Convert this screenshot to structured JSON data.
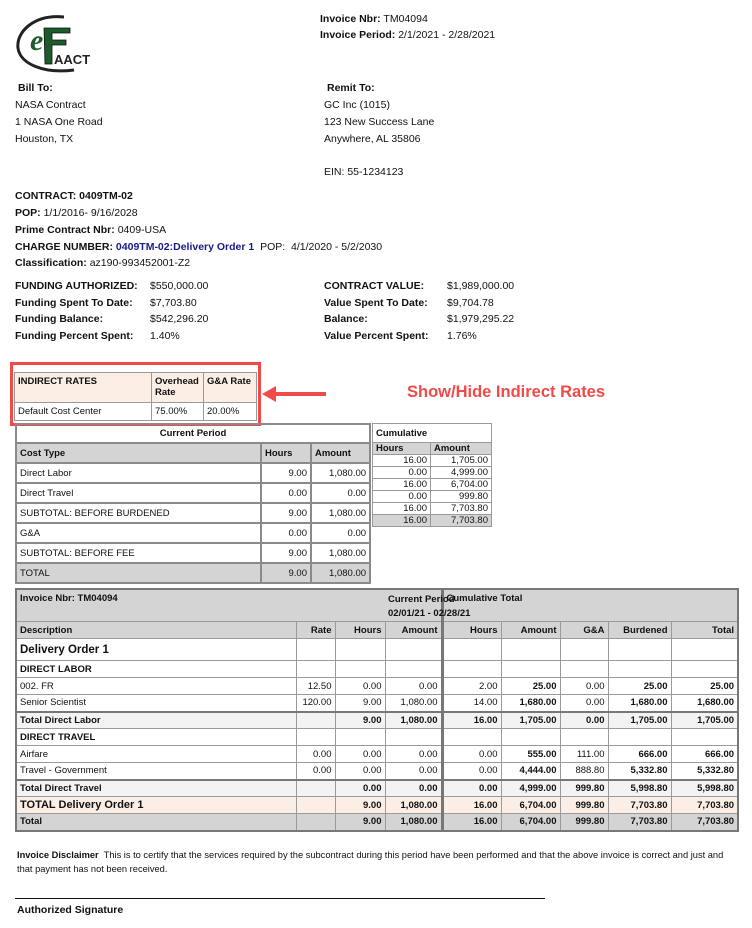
{
  "logo": {
    "text": "eFAACT",
    "color": "#1e5b2c"
  },
  "header": {
    "invoice_nbr_label": "Invoice Nbr:",
    "invoice_nbr": "TM04094",
    "invoice_period_label": "Invoice Period:",
    "invoice_period": "2/1/2021 - 2/28/2021"
  },
  "bill_to": {
    "label": "Bill To:",
    "lines": [
      "NASA Contract",
      "1 NASA One Road",
      "Houston, TX"
    ]
  },
  "remit_to": {
    "label": "Remit To:",
    "lines": [
      "GC Inc (1015)",
      "123 New Success Lane",
      "Anywhere, AL  35806"
    ],
    "ein": "EIN: 55-1234123"
  },
  "contract": {
    "contract_label": "CONTRACT:",
    "contract": "0409TM-02",
    "pop_label": "POP:",
    "pop": "1/1/2016- 9/16/2028",
    "prime_label": "Prime Contract Nbr:",
    "prime": "0409-USA",
    "charge_label": "CHARGE NUMBER:",
    "charge": "0409TM-02:Delivery Order 1",
    "charge_pop_label": "POP:",
    "charge_pop": "4/1/2020  - 5/2/2030",
    "class_label": "Classification:",
    "class": "az190-993452001-Z2"
  },
  "funding": {
    "left": [
      [
        "FUNDING AUTHORIZED:",
        "$550,000.00"
      ],
      [
        "Funding Spent To Date:",
        "$7,703.80"
      ],
      [
        "Funding Balance:",
        "$542,296.20"
      ],
      [
        "Funding Percent Spent:",
        "1.40%"
      ]
    ],
    "right": [
      [
        "CONTRACT VALUE:",
        "$1,989,000.00"
      ],
      [
        "Value Spent To Date:",
        "$9,704.78"
      ],
      [
        "Balance:",
        "$1,979,295.22"
      ],
      [
        "Value Percent Spent:",
        "1.76%"
      ]
    ]
  },
  "indirect": {
    "headers": [
      "INDIRECT RATES",
      "Overhead Rate",
      "G&A Rate"
    ],
    "row": [
      "Default Cost Center",
      "75.00%",
      "20.00%"
    ],
    "annotation": "Show/Hide Indirect Rates",
    "annotation_color": "#f04a4a"
  },
  "summary": {
    "current_label": "Current Period",
    "cumulative_label": "Cumulative",
    "headers": [
      "Cost Type",
      "Hours",
      "Amount",
      "Hours",
      "Amount"
    ],
    "rows": [
      [
        "Direct Labor",
        "9.00",
        "1,080.00",
        "16.00",
        "1,705.00"
      ],
      [
        "Direct Travel",
        "0.00",
        "0.00",
        "0.00",
        "4,999.00"
      ],
      [
        "SUBTOTAL: BEFORE BURDENED",
        "9.00",
        "1,080.00",
        "16.00",
        "6,704.00"
      ],
      [
        "G&A",
        "0.00",
        "0.00",
        "0.00",
        "999.80"
      ],
      [
        "SUBTOTAL: BEFORE FEE",
        "9.00",
        "1,080.00",
        "16.00",
        "7,703.80"
      ],
      [
        "TOTAL",
        "9.00",
        "1,080.00",
        "16.00",
        "7,703.80"
      ]
    ]
  },
  "detail": {
    "invoice_label": "Invoice Nbr:  TM04094",
    "current_label": "Current Period",
    "current_dates": "02/01/21 - 02/28/21",
    "cumulative_label": "Cumulative Total",
    "headers": [
      "Description",
      "Rate",
      "Hours",
      "Amount",
      "Hours",
      "Amount",
      "G&A",
      "Burdened",
      "Total"
    ],
    "rows": [
      {
        "type": "order",
        "cells": [
          "Delivery Order 1",
          "",
          "",
          "",
          "",
          "",
          "",
          "",
          ""
        ]
      },
      {
        "type": "section",
        "cells": [
          "DIRECT LABOR",
          "",
          "",
          "",
          "",
          "",
          "",
          "",
          ""
        ]
      },
      {
        "type": "item",
        "cells": [
          "002. FR",
          "12.50",
          "0.00",
          "0.00",
          "2.00",
          "25.00",
          "0.00",
          "25.00",
          "25.00"
        ]
      },
      {
        "type": "item",
        "cells": [
          "Senior Scientist",
          "120.00",
          "9.00",
          "1,080.00",
          "14.00",
          "1,680.00",
          "0.00",
          "1,680.00",
          "1,680.00"
        ]
      },
      {
        "type": "subtotal",
        "cells": [
          "Total Direct Labor",
          "",
          "9.00",
          "1,080.00",
          "16.00",
          "1,705.00",
          "0.00",
          "1,705.00",
          "1,705.00"
        ]
      },
      {
        "type": "section",
        "cells": [
          "DIRECT TRAVEL",
          "",
          "",
          "",
          "",
          "",
          "",
          "",
          ""
        ]
      },
      {
        "type": "item",
        "cells": [
          "Airfare",
          "0.00",
          "0.00",
          "0.00",
          "0.00",
          "555.00",
          "111.00",
          "666.00",
          "666.00"
        ]
      },
      {
        "type": "item",
        "cells": [
          "Travel - Government",
          "0.00",
          "0.00",
          "0.00",
          "0.00",
          "4,444.00",
          "888.80",
          "5,332.80",
          "5,332.80"
        ]
      },
      {
        "type": "subtotal",
        "cells": [
          "Total Direct Travel",
          "",
          "0.00",
          "0.00",
          "0.00",
          "4,999.00",
          "999.80",
          "5,998.80",
          "5,998.80"
        ]
      },
      {
        "type": "ordertotal",
        "cells": [
          "TOTAL Delivery Order 1",
          "",
          "9.00",
          "1,080.00",
          "16.00",
          "6,704.00",
          "999.80",
          "7,703.80",
          "7,703.80"
        ]
      },
      {
        "type": "total",
        "cells": [
          "Total",
          "",
          "9.00",
          "1,080.00",
          "16.00",
          "6,704.00",
          "999.80",
          "7,703.80",
          "7,703.80"
        ]
      }
    ]
  },
  "footer": {
    "disclaimer_label": "Invoice Disclaimer",
    "disclaimer": "This is to certify that the services required by the subcontract during this period have been performed and that the above invoice is correct and just and that payment has not been received.",
    "signature_label": "Authorized  Signature"
  }
}
